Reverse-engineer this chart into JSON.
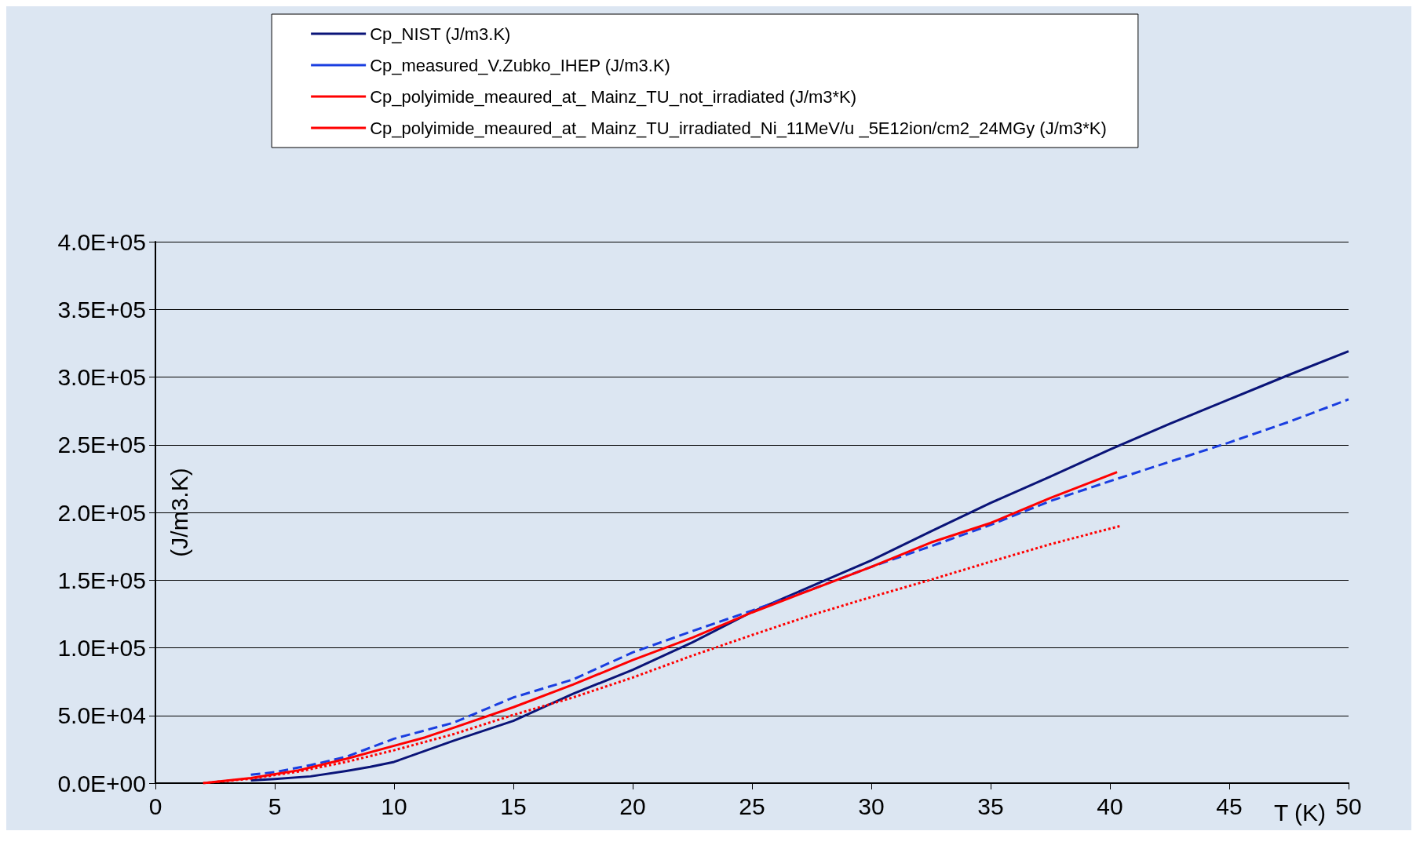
{
  "chart_data": {
    "type": "line",
    "xlabel": "T (K)",
    "ylabel": "(J/m3.K)",
    "xlim": [
      0,
      50
    ],
    "xticks": [
      0,
      5,
      10,
      15,
      20,
      25,
      30,
      35,
      40,
      45,
      50
    ],
    "ylim": [
      0,
      400000
    ],
    "yticks": [
      {
        "value": 0,
        "label": "0.0E+00"
      },
      {
        "value": 50000,
        "label": "5.0E+04"
      },
      {
        "value": 100000,
        "label": "1.0E+05"
      },
      {
        "value": 150000,
        "label": "1.5E+05"
      },
      {
        "value": 200000,
        "label": "2.0E+05"
      },
      {
        "value": 250000,
        "label": "2.5E+05"
      },
      {
        "value": 300000,
        "label": "3.0E+05"
      },
      {
        "value": 350000,
        "label": "3.5E+05"
      },
      {
        "value": 400000,
        "label": "4.0E+05"
      }
    ],
    "grid": "y",
    "legend": "top",
    "marker": "none",
    "series": [
      {
        "name": "Cp_NIST (J/m3.K)",
        "color": "#0a1478",
        "line_style": "solid",
        "x": [
          4,
          5,
          6.5,
          8,
          9,
          10,
          12.5,
          15,
          17.5,
          20,
          22.5,
          25,
          27.5,
          30,
          32.5,
          35,
          37.5,
          40,
          42.5,
          45,
          47.5,
          50
        ],
        "values": [
          2000,
          3000,
          5000,
          9000,
          12000,
          15700,
          31400,
          46000,
          66000,
          83700,
          104000,
          126500,
          145600,
          164600,
          186000,
          207000,
          226500,
          246400,
          265500,
          283500,
          301600,
          319000
        ]
      },
      {
        "name": "Cp_measured_V.Zubko_IHEP (J/m3.K)",
        "color": "#1a3ee0",
        "line_style": "dashed",
        "x": [
          4,
          5,
          6.5,
          8,
          10,
          12.5,
          15,
          17.5,
          20,
          22.5,
          25,
          27.5,
          30,
          32.5,
          35,
          37.5,
          40,
          42.5,
          45,
          47.5,
          50
        ],
        "values": [
          6200,
          8100,
          13300,
          19500,
          32800,
          44700,
          63300,
          76600,
          96600,
          112300,
          127500,
          143200,
          159800,
          175000,
          190800,
          208400,
          223100,
          237400,
          251700,
          266900,
          283500
        ]
      },
      {
        "name": "Cp_polyimide_meaured_at_ Mainz_TU_not_irradiated (J/m3*K)",
        "color": "#ff0000",
        "line_style": "solid",
        "x": [
          2,
          4,
          6,
          8,
          10,
          11.3,
          12.5,
          15,
          17.5,
          20,
          22.5,
          25,
          27.5,
          30,
          32.5,
          35,
          37.5,
          40.3
        ],
        "values": [
          0,
          3800,
          9500,
          18000,
          27600,
          33800,
          40900,
          56100,
          72800,
          90900,
          107500,
          126100,
          143000,
          159800,
          177800,
          192200,
          210700,
          229800
        ]
      },
      {
        "name": "Cp_polyimide_meaured_at_ Mainz_TU_irradiated_Ni_11MeV/u _5E12ion/cm2_24MGy (J/m3*K)",
        "color": "#ff0000",
        "line_style": "dotted",
        "x": [
          2,
          4,
          6,
          8,
          10,
          12.5,
          15,
          17.5,
          20,
          22.5,
          25,
          27.5,
          30,
          32.5,
          35,
          37.5,
          40.5
        ],
        "values": [
          0,
          3300,
          8600,
          15700,
          24300,
          36200,
          50400,
          63300,
          78000,
          94200,
          109400,
          124200,
          137500,
          150300,
          163600,
          176500,
          190300
        ]
      }
    ]
  }
}
